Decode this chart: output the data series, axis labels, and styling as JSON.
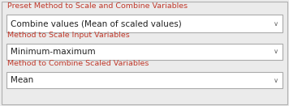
{
  "bg_color": "#ebebeb",
  "outer_border_color": "#b0b0b0",
  "label_color": "#c0392b",
  "text_color": "#222222",
  "dropdown_bg": "#ffffff",
  "dropdown_border": "#aaaaaa",
  "chevron_color": "#666666",
  "labels": [
    "Preset Method to Scale and Combine Variables",
    "Method to Scale Input Variables",
    "Method to Combine Scaled Variables"
  ],
  "values": [
    "Combine values (Mean of scaled values)",
    "Minimum-maximum",
    "Mean"
  ],
  "label_fontsize": 6.8,
  "value_fontsize": 7.5,
  "chevron_fontsize": 6.0,
  "fig_width": 3.56,
  "fig_height": 1.31,
  "dpi": 100
}
